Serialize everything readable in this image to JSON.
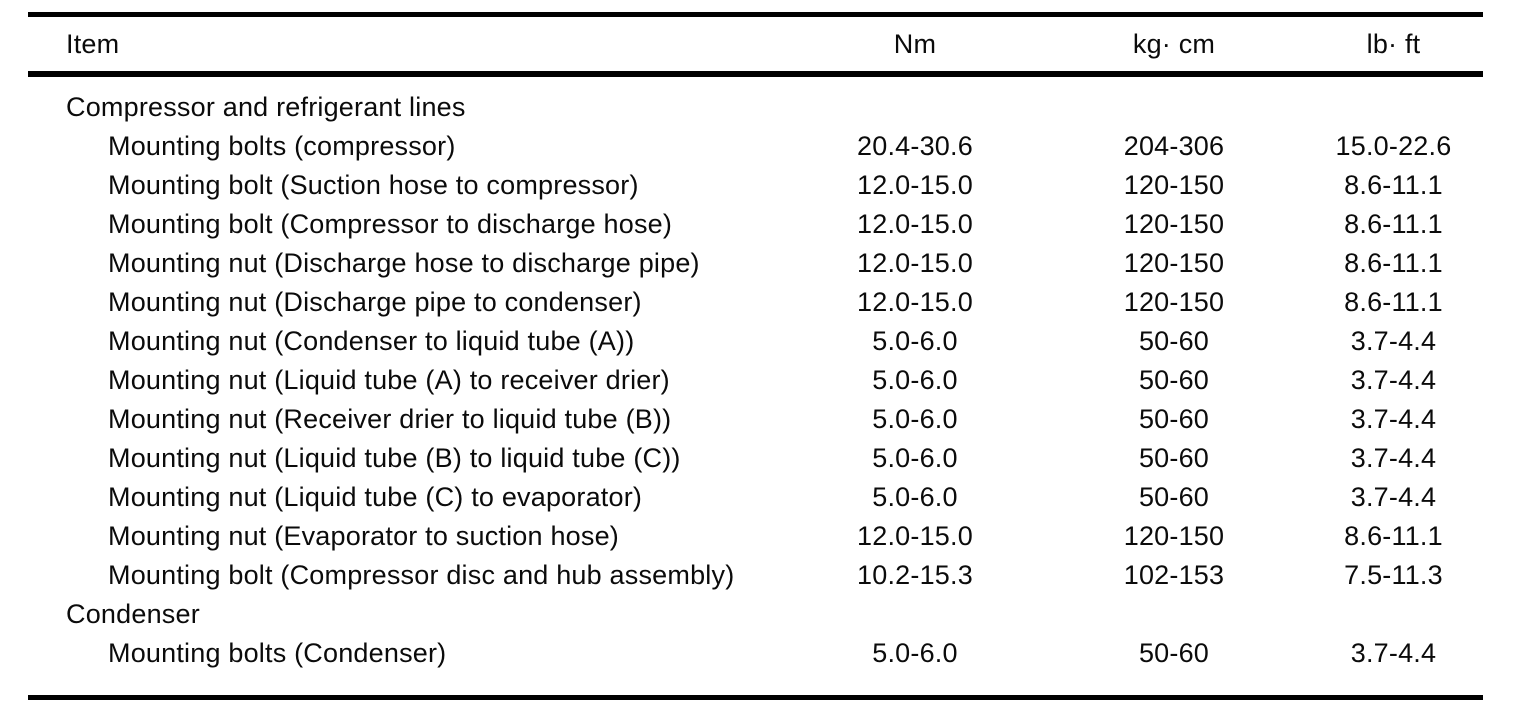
{
  "table": {
    "columns": [
      "Item",
      "Nm",
      "kg· cm",
      "lb· ft"
    ],
    "rows": [
      {
        "type": "section",
        "item": "Compressor and refrigerant lines",
        "nm": "",
        "kgcm": "",
        "lbft": ""
      },
      {
        "type": "item",
        "item": "Mounting bolts (compressor)",
        "nm": "20.4-30.6",
        "kgcm": "204-306",
        "lbft": "15.0-22.6"
      },
      {
        "type": "item",
        "item": "Mounting bolt (Suction hose to compressor)",
        "nm": "12.0-15.0",
        "kgcm": "120-150",
        "lbft": "8.6-11.1"
      },
      {
        "type": "item",
        "item": "Mounting bolt (Compressor to discharge hose)",
        "nm": "12.0-15.0",
        "kgcm": "120-150",
        "lbft": "8.6-11.1"
      },
      {
        "type": "item",
        "item": "Mounting nut (Discharge hose to discharge pipe)",
        "nm": "12.0-15.0",
        "kgcm": "120-150",
        "lbft": "8.6-11.1"
      },
      {
        "type": "item",
        "item": "Mounting nut (Discharge pipe to condenser)",
        "nm": "12.0-15.0",
        "kgcm": "120-150",
        "lbft": "8.6-11.1"
      },
      {
        "type": "item",
        "item": "Mounting nut (Condenser to liquid tube (A))",
        "nm": "5.0-6.0",
        "kgcm": "50-60",
        "lbft": "3.7-4.4"
      },
      {
        "type": "item",
        "item": "Mounting nut (Liquid tube (A) to receiver drier)",
        "nm": "5.0-6.0",
        "kgcm": "50-60",
        "lbft": "3.7-4.4"
      },
      {
        "type": "item",
        "item": "Mounting nut (Receiver drier to liquid tube (B))",
        "nm": "5.0-6.0",
        "kgcm": "50-60",
        "lbft": "3.7-4.4"
      },
      {
        "type": "item",
        "item": "Mounting nut (Liquid tube (B) to liquid tube (C))",
        "nm": "5.0-6.0",
        "kgcm": "50-60",
        "lbft": "3.7-4.4"
      },
      {
        "type": "item",
        "item": "Mounting nut (Liquid tube (C) to evaporator)",
        "nm": "5.0-6.0",
        "kgcm": "50-60",
        "lbft": "3.7-4.4"
      },
      {
        "type": "item",
        "item": "Mounting nut (Evaporator to suction hose)",
        "nm": "12.0-15.0",
        "kgcm": "120-150",
        "lbft": "8.6-11.1"
      },
      {
        "type": "item",
        "item": "Mounting bolt (Compressor disc and hub assembly)",
        "nm": "10.2-15.3",
        "kgcm": "102-153",
        "lbft": "7.5-11.3"
      },
      {
        "type": "section",
        "item": "Condenser",
        "nm": "",
        "kgcm": "",
        "lbft": ""
      },
      {
        "type": "item",
        "item": "Mounting bolts (Condenser)",
        "nm": "5.0-6.0",
        "kgcm": "50-60",
        "lbft": "3.7-4.4"
      }
    ]
  }
}
